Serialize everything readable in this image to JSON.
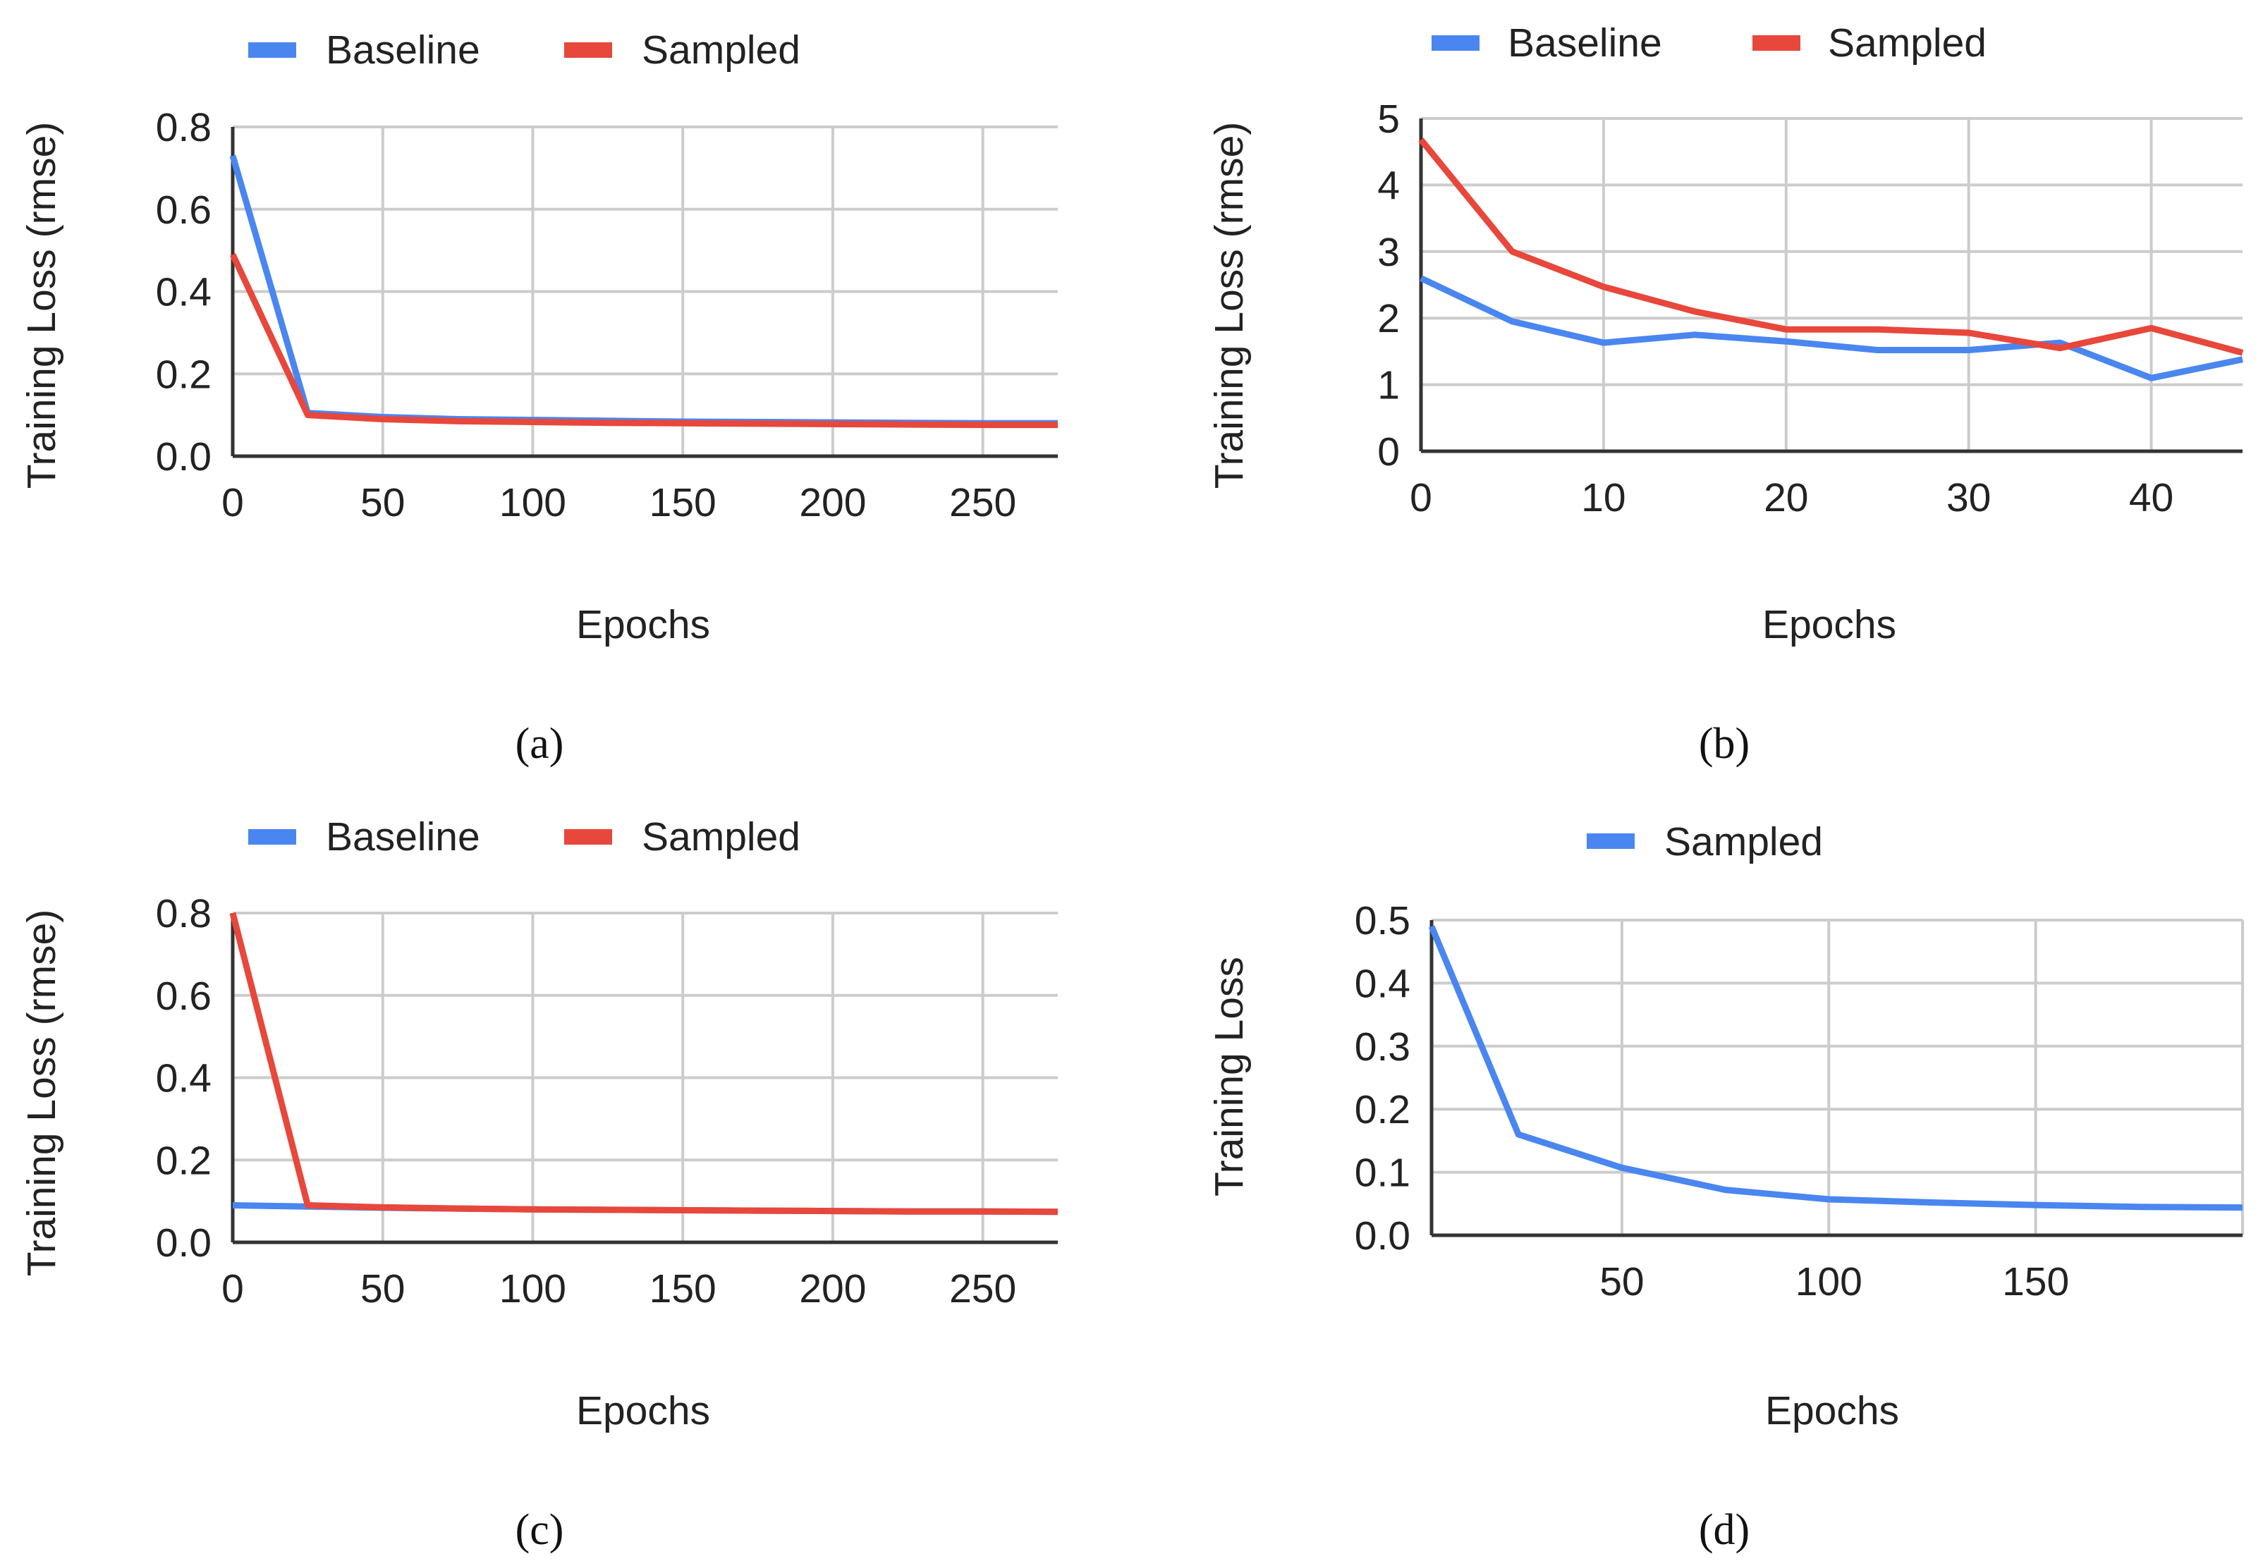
{
  "colors": {
    "baseline": "#4a86f0",
    "sampled": "#e8473b",
    "grid": "#cccccc",
    "axis": "#333333"
  },
  "chart_data": [
    {
      "id": "a",
      "caption": {
        "open": "(",
        "letter": "a",
        "close": ")"
      },
      "type": "line",
      "xlabel": "Epochs",
      "ylabel": "Training Loss (rmse)",
      "xlim": [
        0,
        275
      ],
      "ylim": [
        0,
        0.8
      ],
      "xticks": [
        0,
        50,
        100,
        150,
        200,
        250
      ],
      "xtick_labels": [
        "0",
        "50",
        "100",
        "150",
        "200",
        "250"
      ],
      "yticks": [
        0,
        0.2,
        0.4,
        0.6,
        0.8
      ],
      "ytick_labels": [
        "0.0",
        "0.2",
        "0.4",
        "0.6",
        "0.8"
      ],
      "legend": [
        "Baseline",
        "Sampled"
      ],
      "series": [
        {
          "name": "Baseline",
          "color": "#4a86f0",
          "x": [
            0,
            25,
            50,
            75,
            100,
            125,
            150,
            175,
            200,
            225,
            250,
            275
          ],
          "y": [
            0.73,
            0.105,
            0.095,
            0.09,
            0.088,
            0.086,
            0.084,
            0.083,
            0.082,
            0.081,
            0.08,
            0.08
          ]
        },
        {
          "name": "Sampled",
          "color": "#e8473b",
          "x": [
            0,
            25,
            50,
            75,
            100,
            125,
            150,
            175,
            200,
            225,
            250,
            275
          ],
          "y": [
            0.49,
            0.1,
            0.09,
            0.085,
            0.083,
            0.081,
            0.08,
            0.079,
            0.078,
            0.077,
            0.076,
            0.076
          ]
        }
      ]
    },
    {
      "id": "b",
      "caption": {
        "open": "(",
        "letter": "b",
        "close": ")"
      },
      "type": "line",
      "xlabel": "Epochs",
      "ylabel": "Training Loss (rmse)",
      "xlim": [
        0,
        45
      ],
      "ylim": [
        0,
        5
      ],
      "xticks": [
        0,
        10,
        20,
        30,
        40
      ],
      "xtick_labels": [
        "0",
        "10",
        "20",
        "30",
        "40"
      ],
      "yticks": [
        0,
        1,
        2,
        3,
        4,
        5
      ],
      "ytick_labels": [
        "0",
        "1",
        "2",
        "3",
        "4",
        "5"
      ],
      "legend": [
        "Baseline",
        "Sampled"
      ],
      "series": [
        {
          "name": "Baseline",
          "color": "#4a86f0",
          "x": [
            0,
            5,
            10,
            15,
            20,
            25,
            30,
            35,
            40,
            45
          ],
          "y": [
            2.6,
            1.95,
            1.63,
            1.75,
            1.65,
            1.52,
            1.52,
            1.63,
            1.1,
            1.38
          ]
        },
        {
          "name": "Sampled",
          "color": "#e8473b",
          "x": [
            0,
            5,
            10,
            15,
            20,
            25,
            30,
            35,
            40,
            45
          ],
          "y": [
            4.68,
            3.0,
            2.47,
            2.1,
            1.83,
            1.83,
            1.78,
            1.55,
            1.85,
            1.48
          ]
        }
      ]
    },
    {
      "id": "c",
      "caption": {
        "open": "(",
        "letter": "c",
        "close": ")"
      },
      "type": "line",
      "xlabel": "Epochs",
      "ylabel": "Training Loss (rmse)",
      "xlim": [
        0,
        275
      ],
      "ylim": [
        0,
        0.8
      ],
      "xticks": [
        0,
        50,
        100,
        150,
        200,
        250
      ],
      "xtick_labels": [
        "0",
        "50",
        "100",
        "150",
        "200",
        "250"
      ],
      "yticks": [
        0,
        0.2,
        0.4,
        0.6,
        0.8
      ],
      "ytick_labels": [
        "0.0",
        "0.2",
        "0.4",
        "0.6",
        "0.8"
      ],
      "legend": [
        "Baseline",
        "Sampled"
      ],
      "series": [
        {
          "name": "Baseline",
          "color": "#4a86f0",
          "x": [
            0,
            25,
            50,
            75,
            100,
            125,
            150,
            175,
            200,
            225,
            250,
            275
          ],
          "y": [
            0.09,
            0.087,
            0.084,
            0.082,
            0.08,
            0.079,
            0.078,
            0.077,
            0.076,
            0.075,
            0.075,
            0.074
          ]
        },
        {
          "name": "Sampled",
          "color": "#e8473b",
          "x": [
            0,
            25,
            50,
            75,
            100,
            125,
            150,
            175,
            200,
            225,
            250,
            275
          ],
          "y": [
            0.8,
            0.09,
            0.085,
            0.082,
            0.08,
            0.079,
            0.078,
            0.077,
            0.076,
            0.075,
            0.075,
            0.074
          ]
        }
      ]
    },
    {
      "id": "d",
      "caption": {
        "open": "(",
        "letter": "d",
        "close": ")"
      },
      "type": "line",
      "xlabel": "Epochs",
      "ylabel": "Training Loss",
      "xlim": [
        4,
        200
      ],
      "ylim": [
        0,
        0.5
      ],
      "xticks": [
        50,
        100,
        150
      ],
      "xtick_labels": [
        "50",
        "100",
        "150"
      ],
      "yticks": [
        0,
        0.1,
        0.2,
        0.3,
        0.4,
        0.5
      ],
      "ytick_labels": [
        "0.0",
        "0.1",
        "0.2",
        "0.3",
        "0.4",
        "0.5"
      ],
      "legend": [
        "Sampled"
      ],
      "series": [
        {
          "name": "Sampled",
          "color": "#4a86f0",
          "x": [
            4,
            25,
            50,
            75,
            100,
            125,
            150,
            175,
            200
          ],
          "y": [
            0.49,
            0.16,
            0.107,
            0.072,
            0.057,
            0.052,
            0.048,
            0.045,
            0.044
          ]
        }
      ]
    }
  ]
}
